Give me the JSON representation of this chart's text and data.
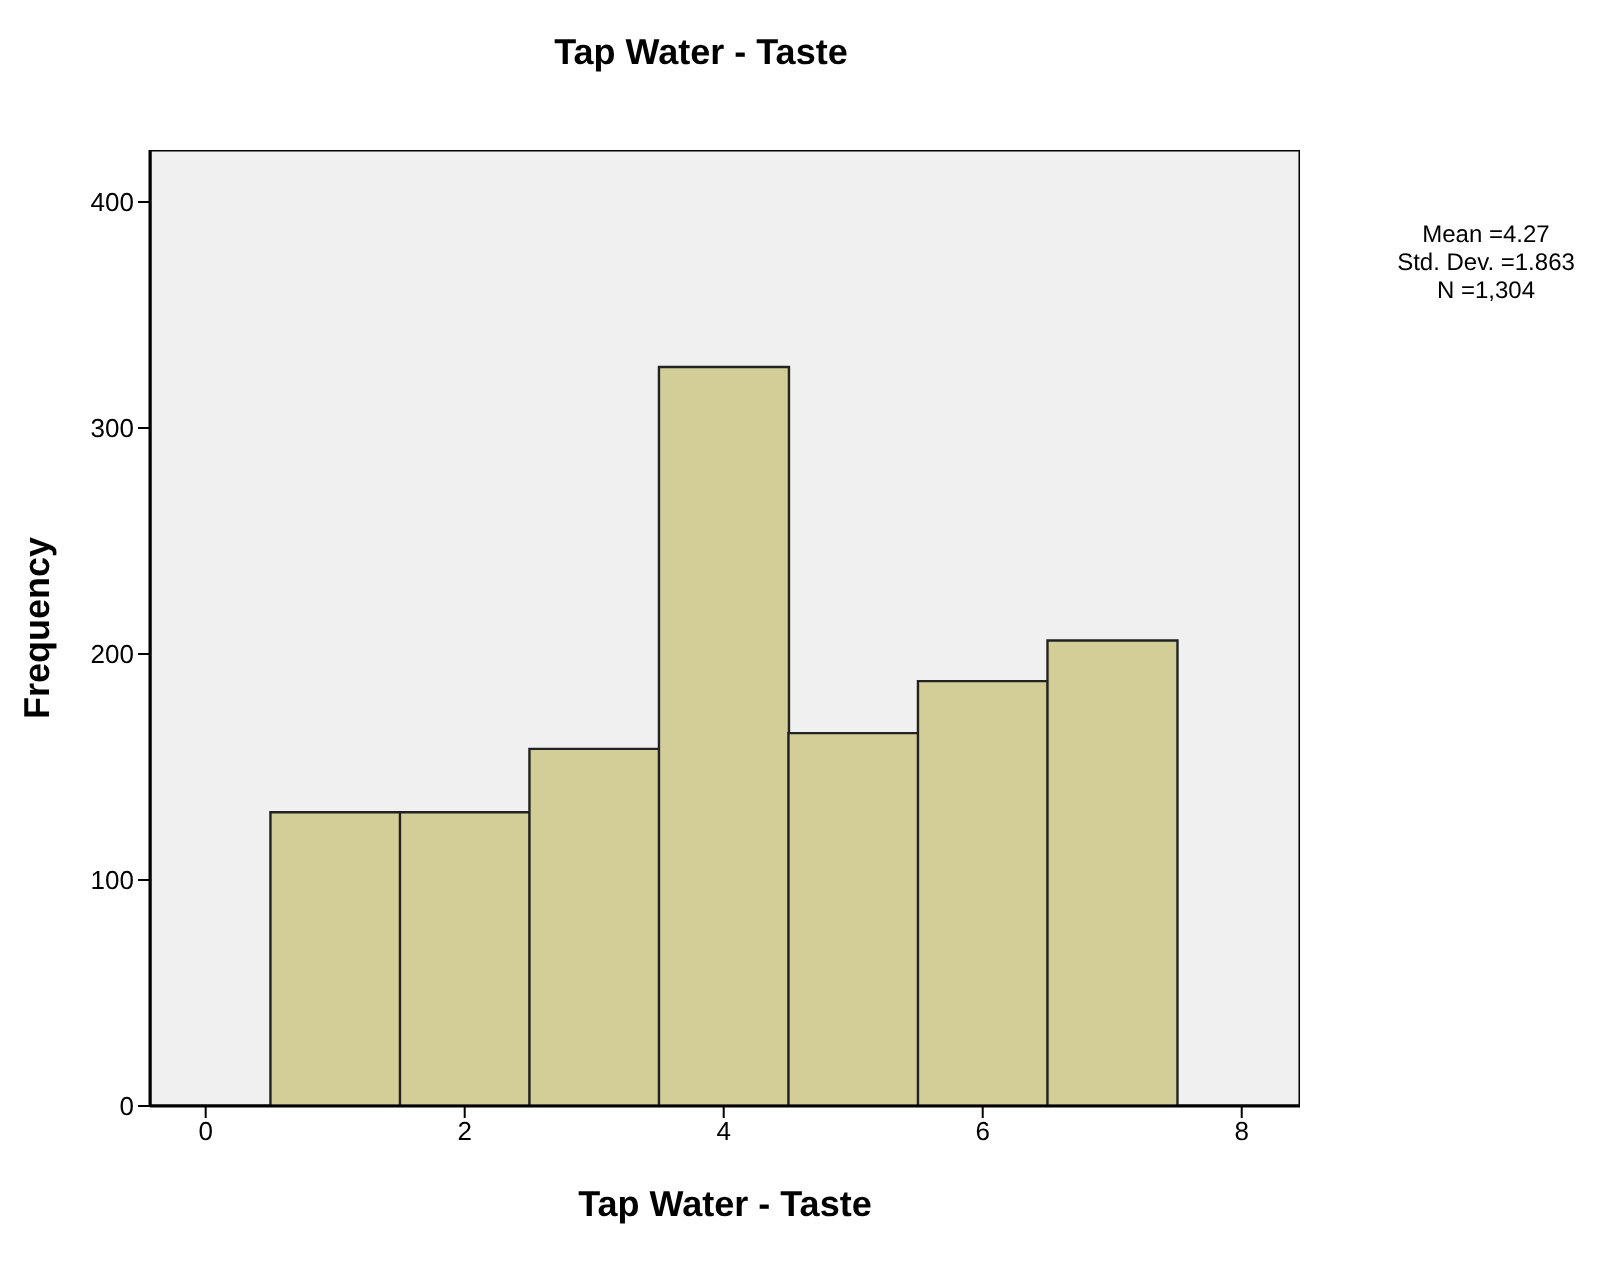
{
  "chart_data": {
    "type": "histogram",
    "title": "Tap Water - Taste",
    "xlabel": "Tap Water - Taste",
    "ylabel": "Frequency",
    "bins": [
      0.5,
      1.5,
      2.5,
      3.5,
      4.5,
      5.5,
      6.5,
      7.5
    ],
    "values": [
      130,
      130,
      158,
      327,
      165,
      188,
      206
    ],
    "color": "#d3ce97",
    "xlim": [
      -0.43,
      8.45
    ],
    "xticks": [
      0,
      2,
      4,
      6,
      8
    ],
    "ylim": [
      0,
      423
    ],
    "yticks": [
      0,
      100,
      200,
      300,
      400
    ],
    "annotations": [
      "Mean =4.27",
      "Std. Dev. =1.863",
      "N =1,304"
    ]
  }
}
